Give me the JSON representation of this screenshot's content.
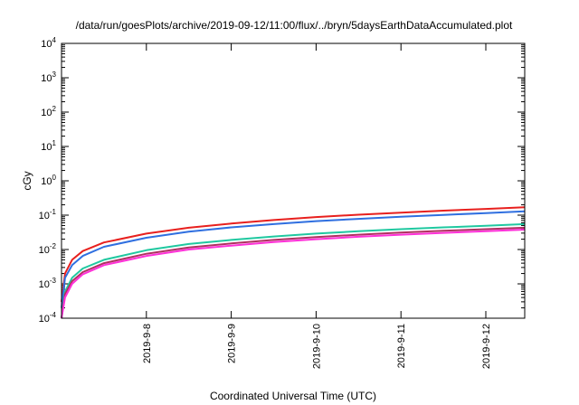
{
  "chart_data": {
    "type": "line",
    "title": "/data/run/goesPlots/archive/2019-09-12/11:00/flux/../bryn/5daysEarthDataAccumulated.plot",
    "xlabel": "Coordinated Universal Time (UTC)",
    "ylabel": "cGy",
    "y_scale": "log",
    "ylim": [
      0.0001,
      10000
    ],
    "xlim": [
      "2019-09-07",
      "2019-09-12 11:00"
    ],
    "grid": false,
    "legend": "none",
    "y_ticks": [
      {
        "base": "10",
        "exp": "-4",
        "value": 0.0001
      },
      {
        "base": "10",
        "exp": "-3",
        "value": 0.001
      },
      {
        "base": "10",
        "exp": "-2",
        "value": 0.01
      },
      {
        "base": "10",
        "exp": "-1",
        "value": 0.1
      },
      {
        "base": "10",
        "exp": "0",
        "value": 1
      },
      {
        "base": "10",
        "exp": "1",
        "value": 10
      },
      {
        "base": "10",
        "exp": "2",
        "value": 100
      },
      {
        "base": "10",
        "exp": "3",
        "value": 1000
      },
      {
        "base": "10",
        "exp": "4",
        "value": 10000
      }
    ],
    "x_ticks": [
      {
        "label": "2019-9-8",
        "date": "2019-09-08"
      },
      {
        "label": "2019-9-9",
        "date": "2019-09-09"
      },
      {
        "label": "2019-9-10",
        "date": "2019-09-10"
      },
      {
        "label": "2019-9-11",
        "date": "2019-09-11"
      },
      {
        "label": "2019-9-12",
        "date": "2019-09-12"
      }
    ],
    "x": [
      "2019-09-07 00:00",
      "2019-09-07 01:00",
      "2019-09-07 03:00",
      "2019-09-07 06:00",
      "2019-09-07 12:00",
      "2019-09-08 00:00",
      "2019-09-08 12:00",
      "2019-09-09 00:00",
      "2019-09-09 12:00",
      "2019-09-10 00:00",
      "2019-09-10 12:00",
      "2019-09-11 00:00",
      "2019-09-11 12:00",
      "2019-09-12 00:00",
      "2019-09-12 11:00"
    ],
    "series": [
      {
        "color": "#e8201e",
        "values": [
          0.0003,
          0.002,
          0.005,
          0.009,
          0.016,
          0.029,
          0.043,
          0.057,
          0.072,
          0.088,
          0.103,
          0.118,
          0.135,
          0.152,
          0.17
        ]
      },
      {
        "color": "#2f6fe0",
        "values": [
          0.0002,
          0.0015,
          0.0035,
          0.0065,
          0.012,
          0.022,
          0.033,
          0.044,
          0.055,
          0.067,
          0.078,
          0.09,
          0.102,
          0.115,
          0.13
        ]
      },
      {
        "color": "#20c8a0",
        "values": [
          0.0001,
          0.0006,
          0.0015,
          0.0028,
          0.005,
          0.0095,
          0.0145,
          0.019,
          0.024,
          0.029,
          0.034,
          0.039,
          0.044,
          0.049,
          0.055
        ]
      },
      {
        "color": "#b03060",
        "values": [
          0.0001,
          0.0005,
          0.0012,
          0.0022,
          0.004,
          0.0075,
          0.0115,
          0.015,
          0.019,
          0.023,
          0.027,
          0.031,
          0.035,
          0.039,
          0.043
        ]
      },
      {
        "color": "#ff30d8",
        "values": [
          0.0001,
          0.0004,
          0.001,
          0.0019,
          0.0035,
          0.0065,
          0.01,
          0.013,
          0.0165,
          0.02,
          0.0235,
          0.027,
          0.0305,
          0.034,
          0.038
        ]
      }
    ]
  }
}
